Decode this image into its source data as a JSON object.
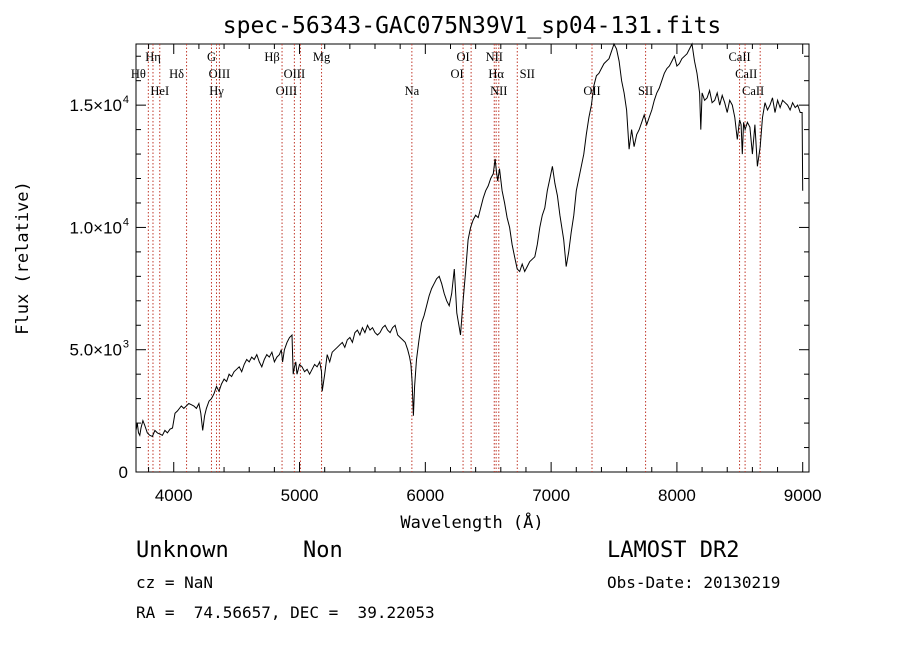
{
  "chart_data": {
    "type": "line",
    "title": "spec-56343-GAC075N39V1_sp04-131.fits",
    "xlabel": "Wavelength (Å)",
    "ylabel": "Flux (relative)",
    "xlim": [
      3700,
      9050
    ],
    "ylim": [
      0,
      17500
    ],
    "x_ticks": [
      {
        "value": 4000,
        "label": "4000"
      },
      {
        "value": 5000,
        "label": "5000"
      },
      {
        "value": 6000,
        "label": "6000"
      },
      {
        "value": 7000,
        "label": "7000"
      },
      {
        "value": 8000,
        "label": "8000"
      },
      {
        "value": 9000,
        "label": "9000"
      }
    ],
    "y_ticks": [
      {
        "value": 0,
        "mant": "0",
        "exp": ""
      },
      {
        "value": 5000,
        "mant": "5.0×10",
        "exp": "3"
      },
      {
        "value": 10000,
        "mant": "1.0×10",
        "exp": "4"
      },
      {
        "value": 15000,
        "mant": "1.5×10",
        "exp": "4"
      }
    ],
    "grid": false,
    "series": [
      {
        "color": "#000000",
        "x": [
          3700,
          3710,
          3720,
          3730,
          3740,
          3755,
          3770,
          3790,
          3810,
          3830,
          3850,
          3870,
          3890,
          3910,
          3930,
          3950,
          3970,
          3990,
          4010,
          4030,
          4060,
          4080,
          4100,
          4120,
          4140,
          4160,
          4180,
          4200,
          4215,
          4230,
          4245,
          4260,
          4280,
          4300,
          4320,
          4340,
          4360,
          4380,
          4400,
          4420,
          4440,
          4460,
          4480,
          4500,
          4520,
          4540,
          4560,
          4580,
          4600,
          4620,
          4640,
          4660,
          4680,
          4700,
          4720,
          4740,
          4760,
          4780,
          4800,
          4820,
          4840,
          4855,
          4865,
          4880,
          4900,
          4920,
          4940,
          4950,
          4960,
          4970,
          4980,
          4990,
          5000,
          5020,
          5040,
          5060,
          5080,
          5100,
          5120,
          5140,
          5160,
          5175,
          5180,
          5200,
          5220,
          5240,
          5260,
          5280,
          5300,
          5320,
          5340,
          5360,
          5380,
          5400,
          5420,
          5440,
          5460,
          5480,
          5500,
          5520,
          5540,
          5560,
          5580,
          5600,
          5620,
          5640,
          5660,
          5680,
          5700,
          5720,
          5740,
          5760,
          5780,
          5800,
          5820,
          5840,
          5860,
          5875,
          5885,
          5895,
          5905,
          5915,
          5930,
          5950,
          5970,
          5990,
          6010,
          6030,
          6050,
          6070,
          6090,
          6110,
          6130,
          6150,
          6170,
          6190,
          6210,
          6230,
          6250,
          6270,
          6280,
          6300,
          6320,
          6340,
          6360,
          6380,
          6400,
          6420,
          6440,
          6460,
          6480,
          6500,
          6520,
          6540,
          6555,
          6565,
          6575,
          6590,
          6610,
          6630,
          6650,
          6670,
          6690,
          6710,
          6730,
          6750,
          6770,
          6790,
          6810,
          6830,
          6850,
          6870,
          6890,
          6910,
          6930,
          6950,
          6970,
          6990,
          7010,
          7030,
          7050,
          7070,
          7100,
          7120,
          7140,
          7160,
          7180,
          7200,
          7220,
          7240,
          7260,
          7280,
          7300,
          7320,
          7340,
          7360,
          7380,
          7400,
          7420,
          7440,
          7460,
          7480,
          7500,
          7520,
          7540,
          7560,
          7580,
          7600,
          7620,
          7640,
          7660,
          7680,
          7700,
          7720,
          7740,
          7760,
          7780,
          7800,
          7820,
          7840,
          7860,
          7880,
          7900,
          7920,
          7940,
          7960,
          7980,
          8000,
          8020,
          8040,
          8060,
          8080,
          8100,
          8120,
          8140,
          8160,
          8180,
          8190,
          8200,
          8220,
          8240,
          8260,
          8280,
          8300,
          8320,
          8340,
          8360,
          8380,
          8400,
          8420,
          8440,
          8460,
          8480,
          8498,
          8510,
          8520,
          8530,
          8542,
          8560,
          8580,
          8600,
          8620,
          8640,
          8662,
          8680,
          8700,
          8720,
          8740,
          8760,
          8780,
          8800,
          8820,
          8840,
          8860,
          8880,
          8900,
          8920,
          8940,
          8960,
          8980,
          8995,
          9000
        ],
        "y": [
          1700,
          2000,
          1600,
          1500,
          1800,
          2100,
          1900,
          1600,
          1500,
          1450,
          1700,
          1600,
          1550,
          1500,
          1700,
          1600,
          1750,
          1800,
          2400,
          2500,
          2700,
          2600,
          2700,
          2800,
          2750,
          2700,
          2600,
          2800,
          2400,
          1700,
          2300,
          2600,
          2900,
          3000,
          3200,
          3500,
          3300,
          3600,
          3800,
          3700,
          4000,
          3900,
          4100,
          4200,
          4300,
          4100,
          4400,
          4600,
          4500,
          4700,
          4600,
          4800,
          4500,
          4300,
          4600,
          4800,
          4700,
          4900,
          4500,
          4700,
          4800,
          5000,
          4500,
          5000,
          5300,
          5500,
          5600,
          4000,
          4300,
          4500,
          4000,
          4200,
          4400,
          4300,
          4100,
          4200,
          4000,
          4200,
          4400,
          4300,
          4500,
          4100,
          3300,
          4000,
          4800,
          4500,
          4900,
          5000,
          5100,
          5200,
          5300,
          5100,
          5400,
          5500,
          5300,
          5700,
          5800,
          5600,
          5900,
          5700,
          6000,
          5800,
          5900,
          5700,
          5600,
          5700,
          5900,
          6000,
          5800,
          5700,
          5900,
          6000,
          5600,
          5500,
          5400,
          5300,
          5000,
          4700,
          4400,
          3700,
          2300,
          3500,
          4600,
          5400,
          6100,
          6400,
          6800,
          7200,
          7500,
          7700,
          7900,
          8000,
          7700,
          7300,
          7000,
          6800,
          7300,
          8300,
          6500,
          5900,
          5600,
          7000,
          8200,
          9500,
          10000,
          10300,
          10500,
          10400,
          10800,
          11200,
          11500,
          11700,
          12000,
          12200,
          12800,
          12300,
          11900,
          12400,
          11500,
          11000,
          10400,
          10000,
          9300,
          8800,
          8300,
          8200,
          8500,
          8200,
          8400,
          8600,
          8700,
          8800,
          9300,
          10000,
          10500,
          10800,
          11500,
          12000,
          12500,
          11800,
          11300,
          10500,
          9500,
          8400,
          9000,
          9800,
          10500,
          11500,
          12000,
          12500,
          13000,
          13800,
          14500,
          15000,
          15800,
          16200,
          16300,
          16500,
          16700,
          16800,
          16900,
          17200,
          17500,
          17300,
          16800,
          16000,
          15500,
          14800,
          13200,
          14000,
          13300,
          13800,
          14000,
          14300,
          14600,
          14200,
          14500,
          14800,
          15200,
          15500,
          15700,
          16000,
          16300,
          16500,
          16600,
          16800,
          17000,
          16600,
          16700,
          16900,
          17000,
          17100,
          17300,
          17500,
          16800,
          16300,
          15500,
          14000,
          15500,
          15200,
          15300,
          15600,
          15100,
          15200,
          15500,
          15000,
          15400,
          15100,
          14700,
          15200,
          15000,
          14500,
          13600,
          14400,
          14200,
          13000,
          14300,
          14000,
          14300,
          14100,
          13000,
          14200,
          12500,
          13300,
          14500,
          15100,
          14800,
          15000,
          15300,
          14700,
          15200,
          14900,
          15200,
          15100,
          15000,
          14800,
          15100,
          14900,
          15000,
          14700,
          14700,
          11500
        ]
      }
    ],
    "lines": {
      "labels": [
        "Hη",
        "Hθ",
        "HeI",
        "Hδ",
        "G",
        "OIII",
        "Hγ",
        "Hβ",
        "OIII",
        "OIII",
        "Mg",
        "Na",
        "OI",
        "OI",
        "NII",
        "Hα",
        "NII",
        "SII",
        "OII",
        "SII",
        "CaII",
        "CaII",
        "CaII"
      ],
      "wavelengths": [
        3835,
        3798,
        3889,
        4102,
        4300,
        4363,
        4340,
        4861,
        4959,
        5007,
        5175,
        5893,
        6300,
        6364,
        6548,
        6563,
        6584,
        6731,
        7325,
        7751,
        8498,
        8542,
        8662
      ]
    }
  },
  "info": {
    "class_label": "Unknown",
    "subclass_label": "Non",
    "survey": "LAMOST DR2",
    "cz": "cz = NaN",
    "obs_date": "Obs-Date: 20130219",
    "radec": "RA =  74.56657, DEC =  39.22053"
  }
}
